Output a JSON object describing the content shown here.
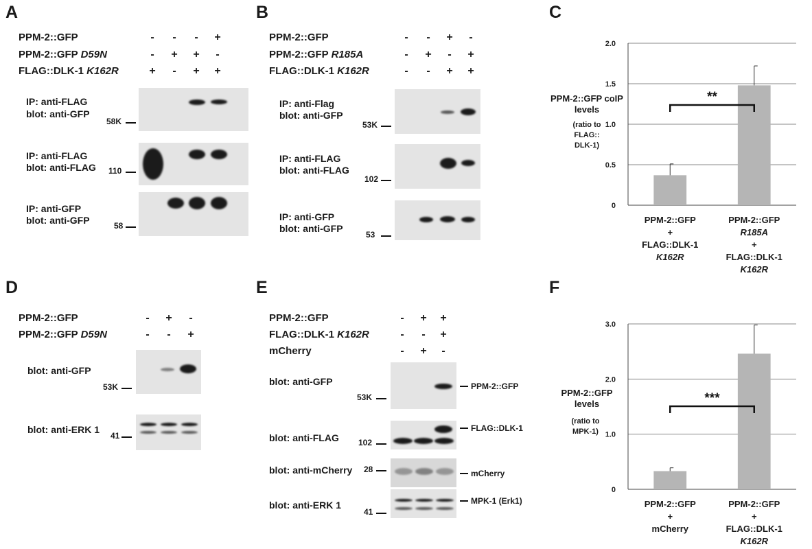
{
  "panels": {
    "A": "A",
    "B": "B",
    "C": "C",
    "D": "D",
    "E": "E",
    "F": "F"
  },
  "A": {
    "rows": [
      "PPM-2::GFP",
      "PPM-2::GFP",
      "FLAG::DLK-1"
    ],
    "row_italic": [
      "",
      "D59N",
      "K162R"
    ],
    "signs": [
      [
        "-",
        "-",
        "-",
        "+"
      ],
      [
        "-",
        "+",
        "+",
        "-"
      ],
      [
        "+",
        "-",
        "+",
        "+"
      ]
    ],
    "blots": [
      {
        "l1": "IP: anti-FLAG",
        "l2": "blot: anti-GFP",
        "mw": "58K"
      },
      {
        "l1": "IP: anti-FLAG",
        "l2": "blot: anti-FLAG",
        "mw": "110"
      },
      {
        "l1": "IP: anti-GFP",
        "l2": "blot: anti-GFP",
        "mw": "58"
      }
    ]
  },
  "B": {
    "rows": [
      "PPM-2::GFP",
      "PPM-2::GFP",
      "FLAG::DLK-1"
    ],
    "row_italic": [
      "",
      "R185A",
      "K162R"
    ],
    "signs": [
      [
        "-",
        "-",
        "+",
        "-"
      ],
      [
        "-",
        "+",
        "-",
        "+"
      ],
      [
        "-",
        "-",
        "+",
        "+"
      ]
    ],
    "blots": [
      {
        "l1": "IP: anti-Flag",
        "l2": "blot: anti-GFP",
        "mw": "53K"
      },
      {
        "l1": "IP: anti-FLAG",
        "l2": "blot: anti-FLAG",
        "mw": "102"
      },
      {
        "l1": "IP: anti-GFP",
        "l2": "blot: anti-GFP",
        "mw": "53"
      }
    ]
  },
  "D": {
    "rows": [
      "PPM-2::GFP",
      "PPM-2::GFP"
    ],
    "row_italic": [
      "",
      "D59N"
    ],
    "signs": [
      [
        "-",
        "+",
        "-"
      ],
      [
        "-",
        "-",
        "+"
      ]
    ],
    "blots": [
      {
        "l1": "blot: anti-GFP",
        "mw": "53K"
      },
      {
        "l1": "blot: anti-ERK 1",
        "mw": "41"
      }
    ]
  },
  "E": {
    "rows": [
      "PPM-2::GFP",
      "FLAG::DLK-1",
      "mCherry"
    ],
    "row_italic": [
      "",
      "K162R",
      ""
    ],
    "signs": [
      [
        "-",
        "+",
        "+"
      ],
      [
        "-",
        "-",
        "+"
      ],
      [
        "-",
        "+",
        "-"
      ]
    ],
    "blots": [
      {
        "l1": "blot: anti-GFP",
        "mw": "53K",
        "right": "PPM-2::GFP"
      },
      {
        "l1": "blot: anti-FLAG",
        "mw": "102",
        "right": "FLAG::DLK-1"
      },
      {
        "l1": "blot: anti-mCherry",
        "mw": "28",
        "right": "mCherry"
      },
      {
        "l1": "blot: anti-ERK 1",
        "mw": "41",
        "right": "MPK-1 (Erk1)"
      }
    ]
  },
  "chart_data": [
    {
      "type": "bar",
      "panel": "C",
      "ylabel": "PPM-2::GFP coIP levels",
      "ylabel_sub": "(ratio to FLAG:: DLK-1)",
      "ylim": [
        0,
        2.0
      ],
      "yticks": [
        "0",
        "0.5",
        "1.0",
        "1.5",
        "2.0"
      ],
      "ytick_values": [
        0,
        0.5,
        1.0,
        1.5,
        2.0
      ],
      "grid": true,
      "categories": [
        [
          "PPM-2::GFP",
          "+",
          "FLAG::DLK-1",
          "K162R"
        ],
        [
          "PPM-2::GFP",
          "R185A",
          "+",
          "FLAG::DLK-1",
          "K162R"
        ]
      ],
      "values": [
        0.37,
        1.48
      ],
      "errors": [
        0.14,
        0.24
      ],
      "significance": "**",
      "bar_color": "#b5b5b5"
    },
    {
      "type": "bar",
      "panel": "F",
      "ylabel": "PPM-2::GFP levels",
      "ylabel_sub": "(ratio to MPK-1)",
      "ylim": [
        0,
        3.0
      ],
      "yticks": [
        "0",
        "1.0",
        "2.0",
        "3.0"
      ],
      "ytick_values": [
        0,
        1.0,
        2.0,
        3.0
      ],
      "grid": true,
      "categories": [
        [
          "PPM-2::GFP",
          "+",
          "mCherry"
        ],
        [
          "PPM-2::GFP",
          "+",
          "FLAG::DLK-1",
          "K162R"
        ]
      ],
      "values": [
        0.33,
        2.46
      ],
      "errors": [
        0.06,
        0.52
      ],
      "significance": "***",
      "bar_color": "#b5b5b5"
    }
  ]
}
